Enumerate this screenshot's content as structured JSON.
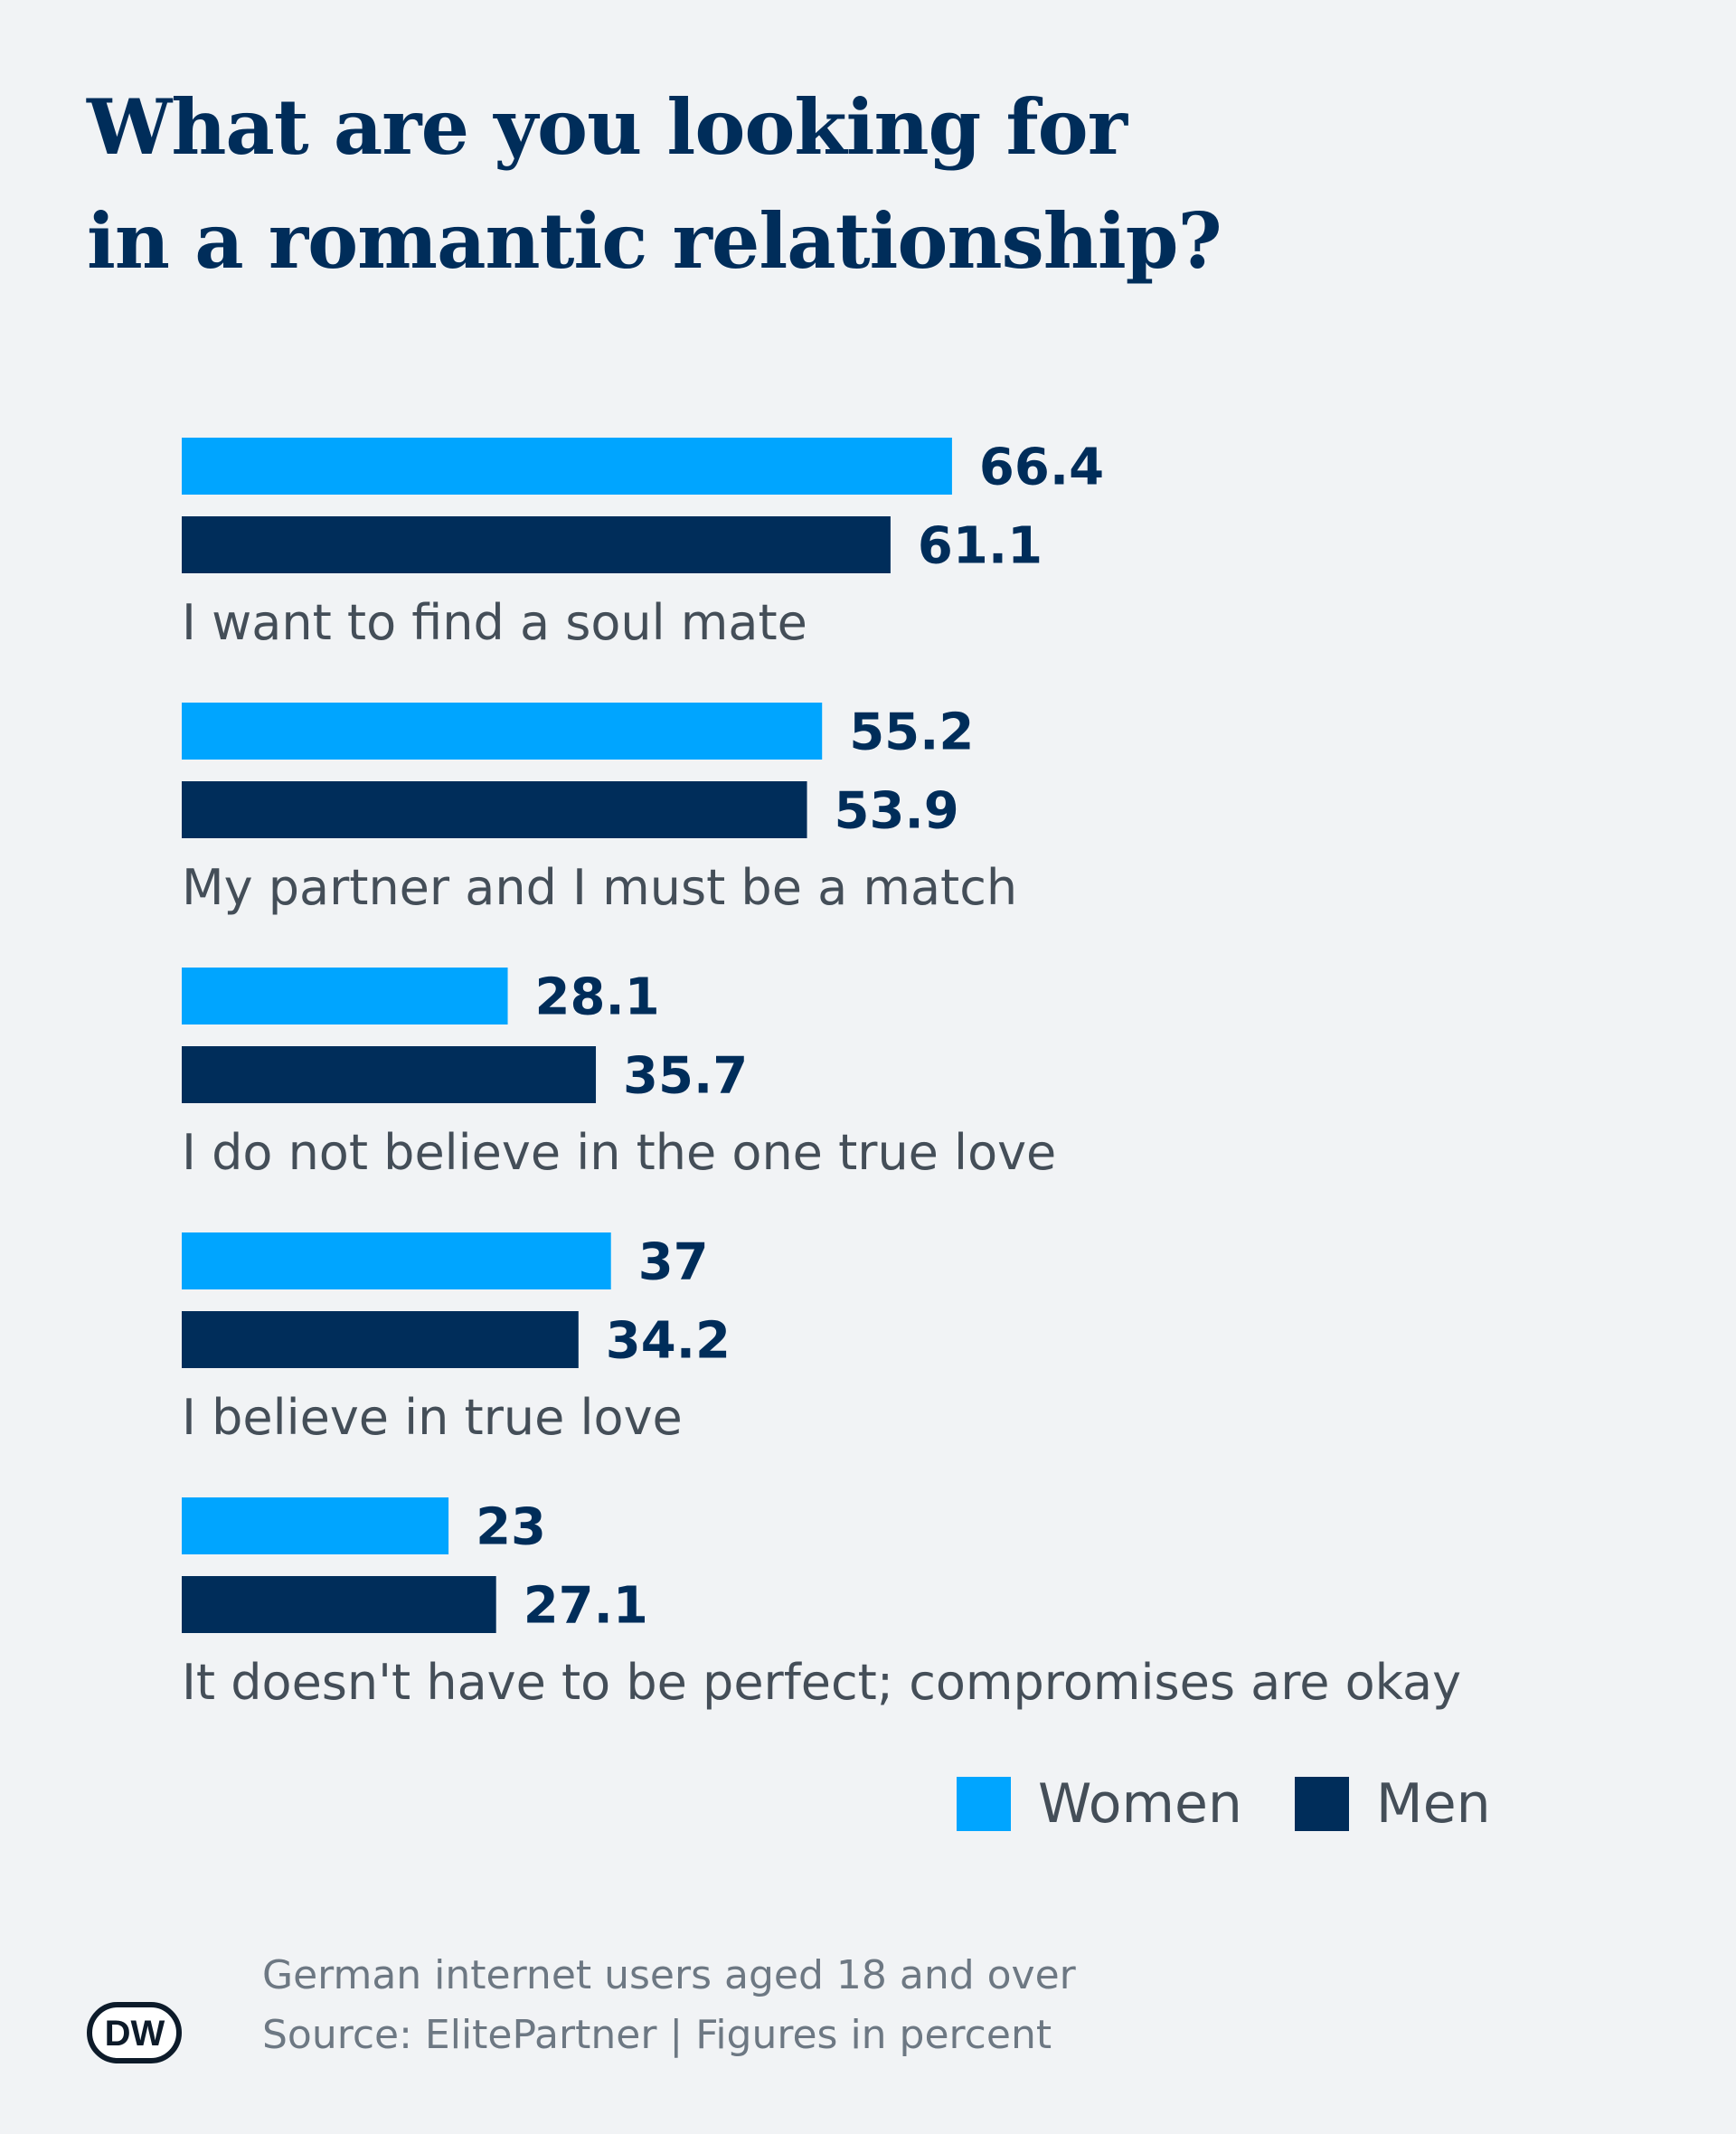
{
  "title_lines": [
    "What are you looking for",
    "in a romantic relationship?"
  ],
  "chart_data": {
    "type": "bar",
    "orientation": "horizontal",
    "categories": [
      "I want to find a soul mate",
      "My partner and I must be a match",
      "I do not believe in the one true love",
      "I believe in true love",
      "It doesn't have to be perfect; compromises are okay"
    ],
    "series": [
      {
        "name": "Women",
        "color": "#00a5ff",
        "values": [
          66.4,
          55.2,
          28.1,
          37,
          23
        ],
        "labels": [
          "66.4",
          "55.2",
          "28.1",
          "37",
          "23"
        ]
      },
      {
        "name": "Men",
        "color": "#002d5a",
        "values": [
          61.1,
          53.9,
          35.7,
          34.2,
          27.1
        ],
        "labels": [
          "61.1",
          "53.9",
          "35.7",
          "34.2",
          "27.1"
        ]
      }
    ],
    "xlim": [
      0,
      100
    ],
    "grid": false,
    "legend_position": "bottom-right"
  },
  "footer": {
    "note": "German internet users aged 18 and over",
    "source": "Source: ElitePartner | Figures in percent"
  },
  "logo": {
    "text": "DW"
  }
}
